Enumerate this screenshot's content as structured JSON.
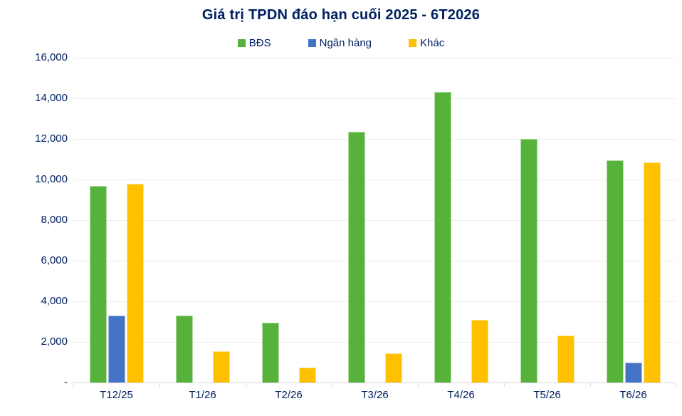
{
  "title": "Giá trị TPDN đáo hạn cuối 2025 - 6T2026",
  "colors": {
    "bds_green": "#56B23A",
    "ngan_hang_blue": "#4472C4",
    "khac_yellow": "#FFC000",
    "text_navy": "#002060",
    "gridline_gray": "#EDEDED",
    "axis_gray": "#D9D9D9"
  },
  "legend": {
    "items": [
      {
        "label": "BĐS",
        "color": "#56B23A"
      },
      {
        "label": "Ngân hàng",
        "color": "#4472C4"
      },
      {
        "label": "Khác",
        "color": "#FFC000"
      }
    ]
  },
  "chart_data": {
    "type": "bar",
    "title": "Giá trị TPDN đáo hạn cuối 2025 - 6T2026",
    "categories": [
      "T12/25",
      "T1/26",
      "T2/26",
      "T3/26",
      "T4/26",
      "T5/26",
      "T6/26"
    ],
    "series": [
      {
        "name": "BĐS",
        "color": "#56B23A",
        "values": [
          9700,
          3300,
          2950,
          12350,
          14300,
          12000,
          10950
        ]
      },
      {
        "name": "Ngân hàng",
        "color": "#4472C4",
        "values": [
          3300,
          0,
          0,
          0,
          0,
          0,
          1000
        ]
      },
      {
        "name": "Khác",
        "color": "#FFC000",
        "values": [
          9800,
          1550,
          750,
          1450,
          3100,
          2300,
          10850
        ]
      }
    ],
    "xlabel": "",
    "ylabel": "",
    "ylim": [
      0,
      16000
    ],
    "y_tick_step": 2000,
    "y_tick_labels": [
      "-",
      "2,000",
      "4,000",
      "6,000",
      "8,000",
      "10,000",
      "12,000",
      "14,000",
      "16,000"
    ],
    "grid": true,
    "legend_position": "top-center"
  }
}
